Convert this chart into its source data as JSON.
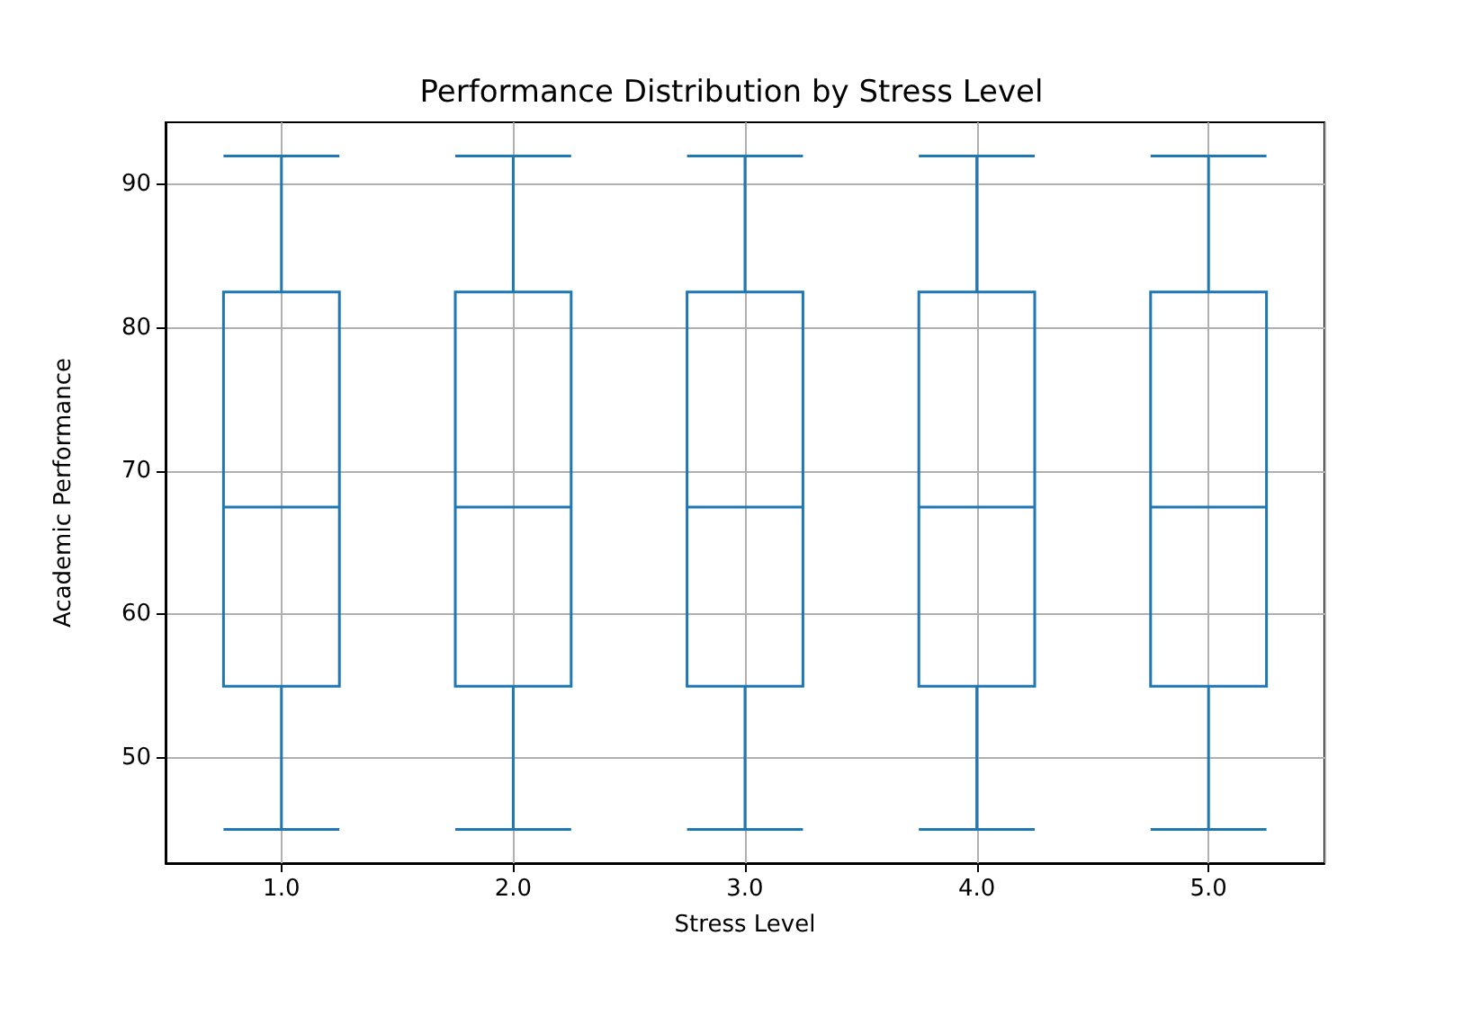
{
  "chart_data": {
    "type": "box",
    "title": "Performance Distribution by Stress Level",
    "xlabel": "Stress Level",
    "ylabel": "Academic Performance",
    "categories": [
      "1.0",
      "2.0",
      "3.0",
      "4.0",
      "5.0"
    ],
    "series": [
      {
        "color": "#1f77b4",
        "boxes": [
          {
            "low": 45,
            "q1": 55,
            "median": 67.5,
            "q3": 82.5,
            "high": 92
          },
          {
            "low": 45,
            "q1": 55,
            "median": 67.5,
            "q3": 82.5,
            "high": 92
          },
          {
            "low": 45,
            "q1": 55,
            "median": 67.5,
            "q3": 82.5,
            "high": 92
          },
          {
            "low": 45,
            "q1": 55,
            "median": 67.5,
            "q3": 82.5,
            "high": 92
          },
          {
            "low": 45,
            "q1": 55,
            "median": 67.5,
            "q3": 82.5,
            "high": 92
          }
        ]
      }
    ],
    "ylim": [
      42.65,
      94.35
    ],
    "yticks": [
      50,
      60,
      70,
      80,
      90
    ],
    "grid": true
  }
}
